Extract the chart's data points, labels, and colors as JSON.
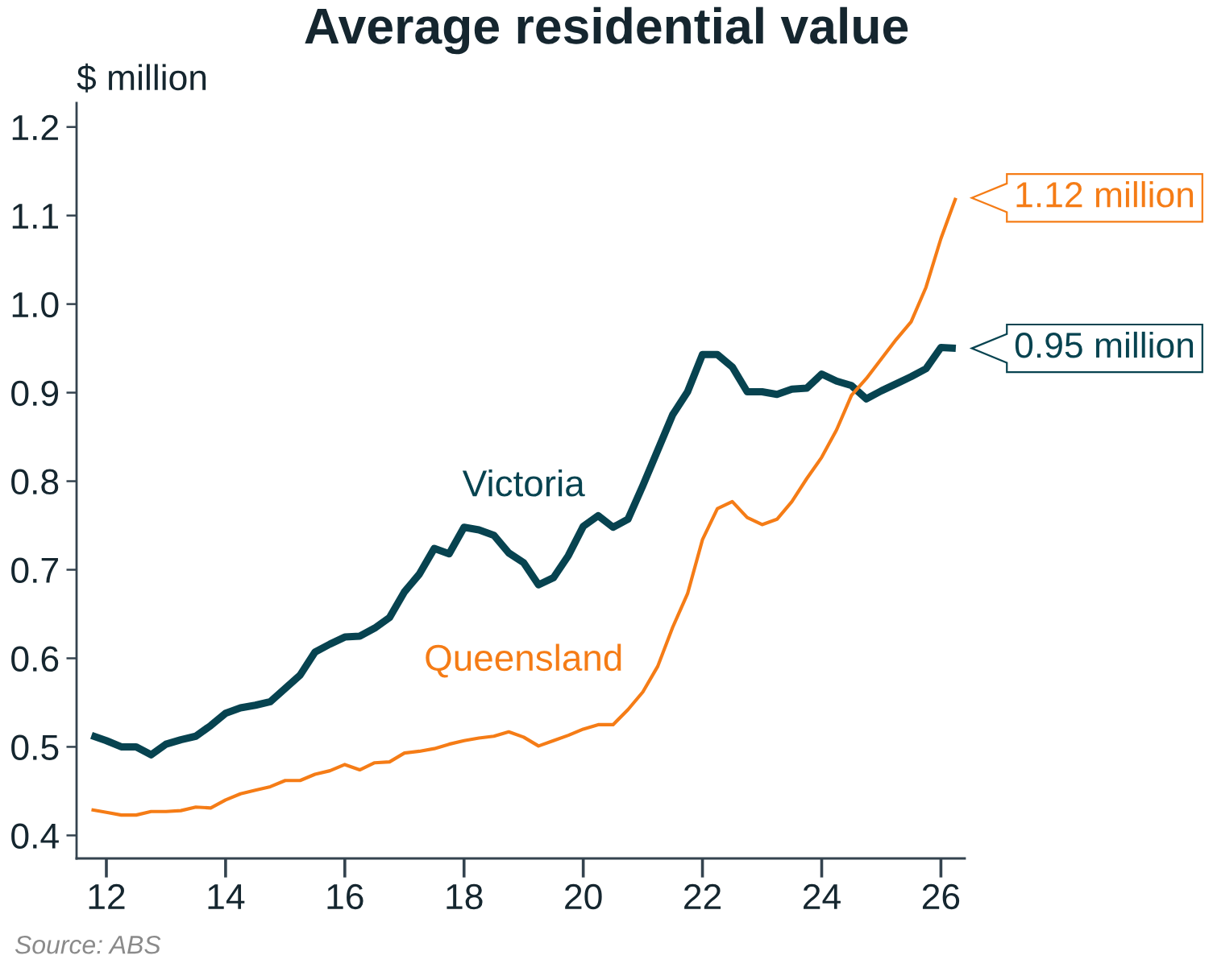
{
  "chart_data": {
    "type": "line",
    "title": "Average residential value",
    "ylabel": "$ million",
    "x": [
      11.75,
      12,
      12.25,
      12.5,
      12.75,
      13,
      13.25,
      13.5,
      13.75,
      14,
      14.25,
      14.5,
      14.75,
      15,
      15.25,
      15.5,
      15.75,
      16,
      16.25,
      16.5,
      16.75,
      17,
      17.25,
      17.5,
      17.75,
      18,
      18.25,
      18.5,
      18.75,
      19,
      19.25,
      19.5,
      19.75,
      20,
      20.25,
      20.5,
      20.75,
      21,
      21.25,
      21.5,
      21.75,
      22,
      22.25,
      22.5,
      22.75,
      23,
      23.25,
      23.5,
      23.75,
      24,
      24.25,
      24.5,
      24.75,
      25,
      25.25,
      25.5,
      25.75,
      26,
      26.25
    ],
    "series": [
      {
        "name": "Victoria",
        "color": "#074350",
        "values": [
          0.513,
          0.507,
          0.5,
          0.5,
          0.491,
          0.503,
          0.508,
          0.512,
          0.524,
          0.538,
          0.544,
          0.547,
          0.551,
          0.566,
          0.581,
          0.607,
          0.616,
          0.624,
          0.625,
          0.634,
          0.646,
          0.675,
          0.695,
          0.724,
          0.718,
          0.748,
          0.745,
          0.739,
          0.719,
          0.708,
          0.683,
          0.691,
          0.716,
          0.749,
          0.761,
          0.748,
          0.757,
          0.795,
          0.835,
          0.875,
          0.901,
          0.943,
          0.943,
          0.929,
          0.901,
          0.901,
          0.898,
          0.904,
          0.905,
          0.921,
          0.913,
          0.908,
          0.893,
          0.902,
          0.91,
          0.918,
          0.927,
          0.951,
          0.95
        ]
      },
      {
        "name": "Queensland",
        "color": "#f57c16",
        "values": [
          0.429,
          0.426,
          0.423,
          0.423,
          0.427,
          0.427,
          0.428,
          0.432,
          0.431,
          0.44,
          0.447,
          0.451,
          0.455,
          0.462,
          0.462,
          0.469,
          0.473,
          0.48,
          0.474,
          0.482,
          0.483,
          0.493,
          0.495,
          0.498,
          0.503,
          0.507,
          0.51,
          0.512,
          0.517,
          0.511,
          0.501,
          0.507,
          0.513,
          0.52,
          0.525,
          0.525,
          0.542,
          0.562,
          0.591,
          0.635,
          0.673,
          0.734,
          0.769,
          0.777,
          0.759,
          0.751,
          0.757,
          0.777,
          0.803,
          0.827,
          0.858,
          0.897,
          0.916,
          0.938,
          0.96,
          0.98,
          1.019,
          1.074,
          1.12
        ]
      }
    ],
    "xlim": [
      11.5,
      26.4
    ],
    "ylim": [
      0.374,
      1.227
    ],
    "xticks": [
      12,
      14,
      16,
      18,
      20,
      22,
      24,
      26
    ],
    "yticks": [
      0.4,
      0.5,
      0.6,
      0.7,
      0.8,
      0.9,
      {
        "value": 1,
        "label": "1.0"
      },
      1.1,
      1.2
    ],
    "annotations": [
      {
        "text": "1.12 million",
        "x": 26.25,
        "y": 1.12
      },
      {
        "text": "0.95 million",
        "x": 26.25,
        "y": 0.95
      },
      "Source: ABS"
    ],
    "legend": false,
    "grid": false,
    "marker": "none",
    "line_style": "solid"
  }
}
